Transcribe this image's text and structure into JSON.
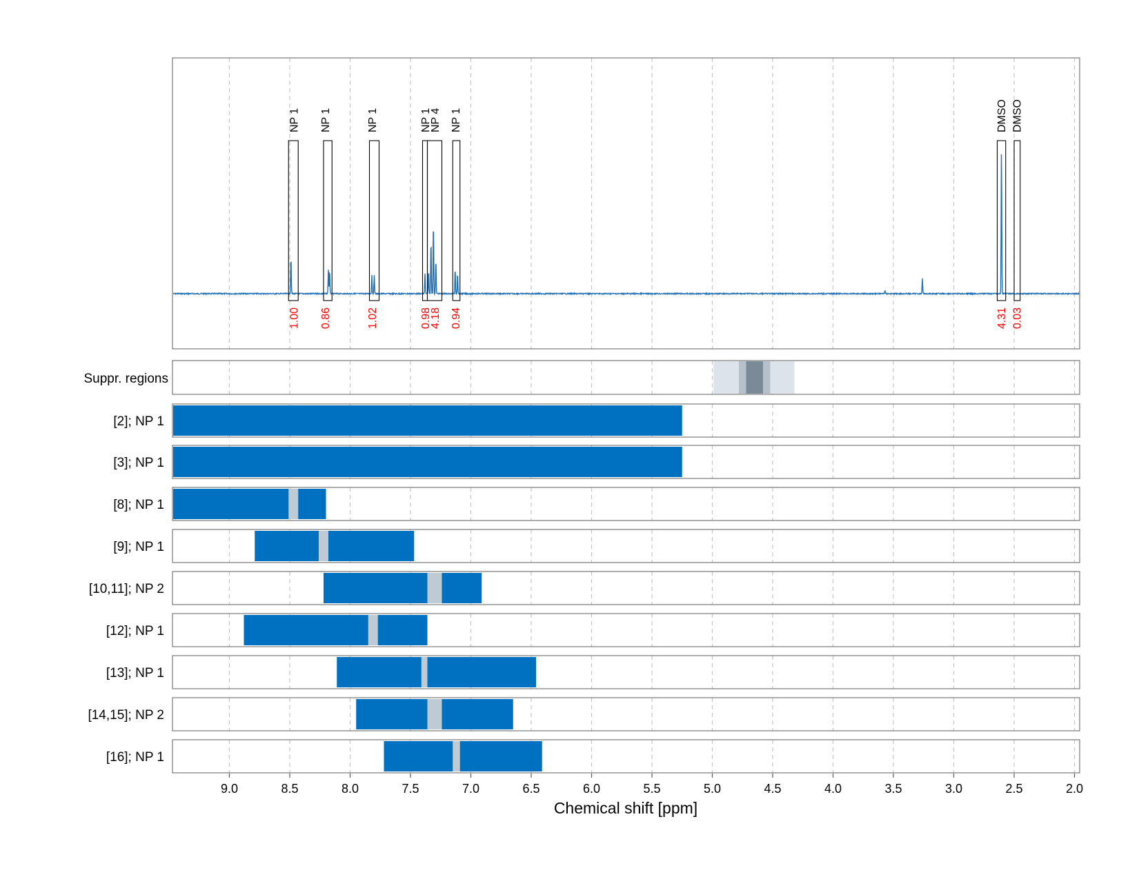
{
  "chart_data": {
    "type": "line",
    "xlabel": "Chemical shift [ppm]",
    "x_range": [
      9.47,
      1.97
    ],
    "x_reversed": true,
    "x_ticks": [
      "9.0",
      "8.5",
      "8.0",
      "7.5",
      "7.0",
      "6.5",
      "6.0",
      "5.5",
      "5.0",
      "4.5",
      "4.0",
      "3.5",
      "3.0",
      "2.5",
      "2.0"
    ],
    "grid": true,
    "colors": {
      "spectrum": "#1f6fb4",
      "bar": "#0070c0",
      "gap": "#bfcbd4",
      "integral": "#ff0000",
      "suppr_light": "#dde3ea",
      "suppr_mid": "#b6c1cb",
      "suppr_dark": "#7a8a96"
    },
    "spectrum_peaks": [
      {
        "x": 8.49,
        "h": 0.22
      },
      {
        "x": 8.18,
        "h": 0.14
      },
      {
        "x": 8.17,
        "h": 0.14
      },
      {
        "x": 7.82,
        "h": 0.11
      },
      {
        "x": 7.8,
        "h": 0.11
      },
      {
        "x": 7.38,
        "h": 0.12
      },
      {
        "x": 7.35,
        "h": 0.14
      },
      {
        "x": 7.33,
        "h": 0.32
      },
      {
        "x": 7.31,
        "h": 0.43
      },
      {
        "x": 7.29,
        "h": 0.2
      },
      {
        "x": 7.13,
        "h": 0.15
      },
      {
        "x": 7.11,
        "h": 0.12
      },
      {
        "x": 3.57,
        "h": 0.02
      },
      {
        "x": 3.26,
        "h": 0.09
      },
      {
        "x": 2.605,
        "h": 0.86
      }
    ],
    "annotations": [
      {
        "label": "NP 1",
        "integral": "1.00",
        "x_start": 8.51,
        "x_end": 8.43,
        "label_x": 8.47
      },
      {
        "label": "NP 1",
        "integral": "0.86",
        "x_start": 8.22,
        "x_end": 8.15,
        "label_x": 8.21
      },
      {
        "label": "NP 1",
        "integral": "1.02",
        "x_start": 7.84,
        "x_end": 7.76,
        "label_x": 7.82
      },
      {
        "label": "NP 1",
        "integral": "0.98",
        "x_start": 7.4,
        "x_end": 7.36,
        "label_x": 7.38
      },
      {
        "label": "NP 4",
        "integral": "4.18",
        "x_start": 7.36,
        "x_end": 7.24,
        "label_x": 7.3
      },
      {
        "label": "NP 1",
        "integral": "0.94",
        "x_start": 7.15,
        "x_end": 7.09,
        "label_x": 7.13
      },
      {
        "label": "DMSO",
        "integral": "4.31",
        "x_start": 2.64,
        "x_end": 2.57,
        "label_x": 2.61
      },
      {
        "label": "DMSO",
        "integral": "0.03",
        "x_start": 2.5,
        "x_end": 2.45,
        "label_x": 2.48
      }
    ],
    "suppr_regions": {
      "label": "Suppr. regions",
      "bands": [
        {
          "x_start": 4.99,
          "x_end": 4.32,
          "shade": "light"
        },
        {
          "x_start": 4.78,
          "x_end": 4.52,
          "shade": "mid"
        },
        {
          "x_start": 4.72,
          "x_end": 4.58,
          "shade": "dark"
        }
      ]
    },
    "rows": [
      {
        "label": "[2]; NP 1",
        "x_start": 9.47,
        "x_end": 5.25,
        "gap": null
      },
      {
        "label": "[3]; NP 1",
        "x_start": 9.47,
        "x_end": 5.25,
        "gap": null
      },
      {
        "label": "[8]; NP 1",
        "x_start": 9.47,
        "x_end": 8.2,
        "gap": [
          8.51,
          8.43
        ]
      },
      {
        "label": "[9]; NP 1",
        "x_start": 8.79,
        "x_end": 7.47,
        "gap": [
          8.26,
          8.18
        ]
      },
      {
        "label": "[10,11]; NP 2",
        "x_start": 8.22,
        "x_end": 6.91,
        "gap": [
          7.36,
          7.24
        ]
      },
      {
        "label": "[12]; NP 1",
        "x_start": 8.88,
        "x_end": 7.36,
        "gap": [
          7.85,
          7.77
        ]
      },
      {
        "label": "[13]; NP 1",
        "x_start": 8.11,
        "x_end": 6.46,
        "gap": [
          7.41,
          7.36
        ]
      },
      {
        "label": "[14,15]; NP 2",
        "x_start": 7.95,
        "x_end": 6.65,
        "gap": [
          7.36,
          7.24
        ]
      },
      {
        "label": "[16]; NP 1",
        "x_start": 7.72,
        "x_end": 6.41,
        "gap": [
          7.15,
          7.09
        ]
      }
    ]
  }
}
